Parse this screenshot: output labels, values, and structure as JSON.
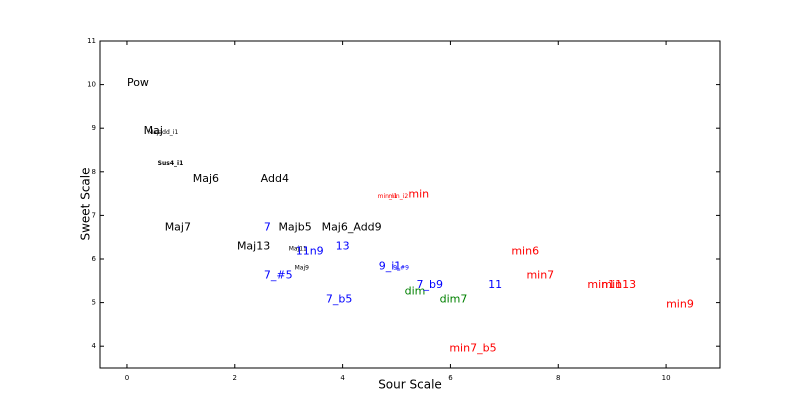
{
  "chart_data": {
    "type": "text-scatter",
    "xlabel": "Sour Scale",
    "ylabel": "Sweet Scale",
    "xlim": [
      -0.5,
      11
    ],
    "ylim": [
      3.5,
      11
    ],
    "xticks": [
      0,
      2,
      4,
      6,
      8,
      10
    ],
    "yticks": [
      4,
      5,
      6,
      7,
      8,
      9,
      10,
      11
    ],
    "labels": [
      "Pow",
      "Maj",
      "Majadd_i1",
      "Sus4_i1",
      "Maj6",
      "Add4",
      "min_i1",
      "min_i2",
      "min",
      "Maj7",
      "7",
      "Majb5",
      "Maj6_Add9",
      "Maj13",
      "Maj11",
      "11n9",
      "13",
      "min6",
      "Maj9",
      "9_i1",
      "9_#9",
      "7_#5",
      "min7",
      "dim",
      "7_b9",
      "11",
      "min11",
      "min13",
      "7_b5",
      "dim7",
      "min9",
      "min7_b5"
    ],
    "x": [
      0,
      0.31,
      0.39,
      0.57,
      1.22,
      2.48,
      4.65,
      4.85,
      5.22,
      0.7,
      2.54,
      2.81,
      3.61,
      2.04,
      3.0,
      3.13,
      3.87,
      7.13,
      3.11,
      4.67,
      4.94,
      2.54,
      7.41,
      5.15,
      5.37,
      6.7,
      8.54,
      8.8,
      3.69,
      5.8,
      10.0,
      5.98
    ],
    "y": [
      9.97,
      8.87,
      8.87,
      8.16,
      7.77,
      7.77,
      7.4,
      7.4,
      7.41,
      6.65,
      6.65,
      6.65,
      6.65,
      6.22,
      6.2,
      6.1,
      6.22,
      6.1,
      5.76,
      5.76,
      5.76,
      5.55,
      5.55,
      5.19,
      5.33,
      5.33,
      5.33,
      5.33,
      5.0,
      5.0,
      4.89,
      3.88
    ],
    "colors": [
      "#000000",
      "#000000",
      "#000000",
      "#000000",
      "#000000",
      "#000000",
      "#ff0000",
      "#ff0000",
      "#ff0000",
      "#000000",
      "#0000ff",
      "#000000",
      "#000000",
      "#000000",
      "#000000",
      "#0000ff",
      "#0000ff",
      "#ff0000",
      "#000000",
      "#0000ff",
      "#0000ff",
      "#0000ff",
      "#ff0000",
      "#008000",
      "#0000ff",
      "#0000ff",
      "#ff0000",
      "#ff0000",
      "#0000ff",
      "#008000",
      "#ff0000",
      "#ff0000"
    ]
  }
}
